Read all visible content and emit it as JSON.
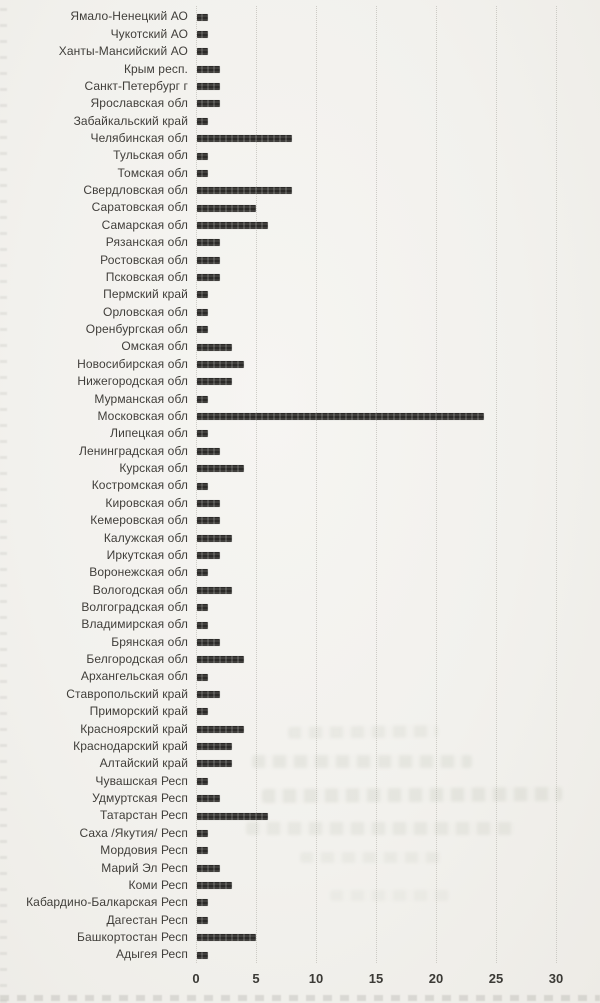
{
  "page": {
    "kind": "scanned horizontal bar chart, no title",
    "background_color": "#f2f1ed"
  },
  "chart_data": {
    "type": "bar",
    "orientation": "horizontal",
    "title": "",
    "xlabel": "",
    "ylabel": "",
    "xlim": [
      0,
      30
    ],
    "x_ticks": [
      0,
      5,
      10,
      15,
      20,
      25,
      30
    ],
    "grid": true,
    "legend": false,
    "bar_color": "#31302d",
    "label_color": "#403e3a",
    "tick_color": "#3b3a36",
    "gridline_color": "#c7c5bf",
    "categories": [
      "Ямало-Ненецкий АО",
      "Чукотский АО",
      "Ханты-Мансийский АО",
      "Крым респ.",
      "Санкт-Петербург г",
      "Ярославская обл",
      "Забайкальский край",
      "Челябинская обл",
      "Тульская обл",
      "Томская обл",
      "Свердловская обл",
      "Саратовская обл",
      "Самарская обл",
      "Рязанская обл",
      "Ростовская обл",
      "Псковская обл",
      "Пермский край",
      "Орловская обл",
      "Оренбургская обл",
      "Омская обл",
      "Новосибирская обл",
      "Нижегородская обл",
      "Мурманская обл",
      "Московская обл",
      "Липецкая обл",
      "Ленинградская обл",
      "Курская обл",
      "Костромская обл",
      "Кировская обл",
      "Кемеровская обл",
      "Калужская обл",
      "Иркутская обл",
      "Воронежская обл",
      "Вологодская обл",
      "Волгоградская обл",
      "Владимирская обл",
      "Брянская обл",
      "Белгородская обл",
      "Архангельская обл",
      "Ставропольский край",
      "Приморский край",
      "Красноярский край",
      "Краснодарский край",
      "Алтайский край",
      "Чувашская Респ",
      "Удмуртская Респ",
      "Татарстан Респ",
      "Саха /Якутия/ Респ",
      "Мордовия Респ",
      "Марий Эл Респ",
      "Коми Респ",
      "Кабардино-Балкарская Респ",
      "Дагестан Респ",
      "Башкортостан Респ",
      "Адыгея Респ"
    ],
    "values": [
      1,
      1,
      1,
      2,
      2,
      2,
      1,
      8,
      1,
      1,
      8,
      5,
      6,
      2,
      2,
      2,
      1,
      1,
      1,
      3,
      4,
      3,
      1,
      24,
      1,
      2,
      4,
      1,
      2,
      2,
      3,
      2,
      1,
      3,
      1,
      1,
      2,
      4,
      1,
      2,
      1,
      4,
      3,
      3,
      1,
      2,
      6,
      1,
      1,
      2,
      3,
      1,
      1,
      5,
      1
    ]
  }
}
